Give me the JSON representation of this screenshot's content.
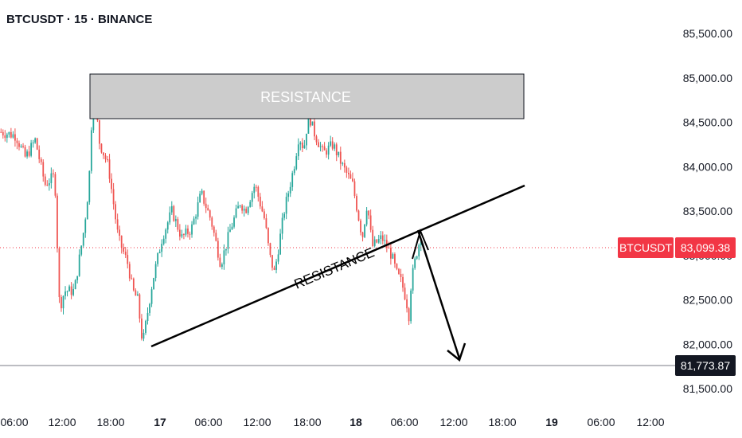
{
  "header": {
    "title": "BTCUSDT · 15 · BINANCE"
  },
  "colors": {
    "up": "#26a69a",
    "down": "#ef5350",
    "current_line": "#f23645",
    "last_line": "#787b86"
  },
  "price_tags": {
    "symbol": "BTCUSDT",
    "current_price": "83,099.38",
    "low_price": "81,773.87"
  },
  "annotations": {
    "box_label": "RESISTANCE",
    "line_label": "RESISTANCE"
  },
  "chart_data": {
    "type": "candlestick",
    "yticks": [
      "85,500.00",
      "85,000.00",
      "84,500.00",
      "84,000.00",
      "83,500.00",
      "83,000.00",
      "82,500.00",
      "82,000.00",
      "81,500.00"
    ],
    "xticks": [
      "06:00",
      "12:00",
      "18:00",
      "17",
      "06:00",
      "12:00",
      "18:00",
      "18",
      "06:00",
      "12:00",
      "18:00",
      "19",
      "06:00",
      "12:00"
    ],
    "ylim": [
      81300,
      85700
    ],
    "current_price": 83099.38,
    "low_marker": 81773.87,
    "resistance_zone": [
      84550,
      85050
    ],
    "close_path": [
      [
        0,
        84390
      ],
      [
        3,
        84350
      ],
      [
        5,
        84100
      ],
      [
        7,
        84300
      ],
      [
        9,
        83800
      ],
      [
        11,
        83900
      ],
      [
        12,
        82400
      ],
      [
        13,
        82600
      ],
      [
        15,
        82600
      ],
      [
        17,
        83300
      ],
      [
        18,
        83800
      ],
      [
        19,
        85080
      ],
      [
        20,
        84300
      ],
      [
        22,
        84000
      ],
      [
        24,
        83200
      ],
      [
        26,
        82900
      ],
      [
        27,
        82600
      ],
      [
        28,
        82500
      ],
      [
        29,
        82000
      ],
      [
        31,
        82700
      ],
      [
        33,
        83200
      ],
      [
        35,
        83500
      ],
      [
        37,
        83200
      ],
      [
        39,
        83300
      ],
      [
        41,
        83700
      ],
      [
        43,
        83400
      ],
      [
        45,
        82900
      ],
      [
        47,
        83300
      ],
      [
        49,
        83600
      ],
      [
        50,
        83500
      ],
      [
        52,
        83800
      ],
      [
        54,
        83400
      ],
      [
        55,
        83000
      ],
      [
        56,
        82800
      ],
      [
        58,
        83500
      ],
      [
        60,
        84000
      ],
      [
        61,
        84350
      ],
      [
        62,
        84200
      ],
      [
        63,
        84600
      ],
      [
        64,
        84400
      ],
      [
        66,
        84150
      ],
      [
        68,
        84250
      ],
      [
        70,
        84000
      ],
      [
        72,
        83800
      ],
      [
        74,
        83200
      ],
      [
        75,
        83600
      ],
      [
        76,
        83100
      ],
      [
        78,
        83200
      ],
      [
        80,
        83000
      ],
      [
        81,
        82800
      ],
      [
        82,
        82700
      ],
      [
        83,
        82500
      ],
      [
        83.5,
        82300
      ],
      [
        84,
        82700
      ],
      [
        85,
        83000
      ],
      [
        86,
        83220
      ]
    ]
  }
}
